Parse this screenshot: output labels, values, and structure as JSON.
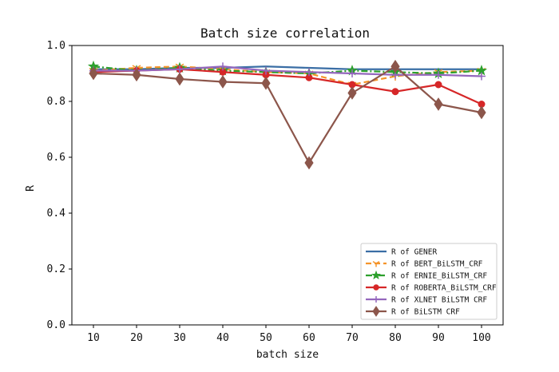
{
  "chart_data": {
    "type": "line",
    "title": "Batch size correlation",
    "xlabel": "batch size",
    "ylabel": "R",
    "categories": [
      "10",
      "20",
      "30",
      "40",
      "50",
      "60",
      "70",
      "80",
      "90",
      "100"
    ],
    "x": [
      10,
      20,
      30,
      40,
      50,
      60,
      70,
      80,
      90,
      100
    ],
    "xlim": [
      5,
      105
    ],
    "ylim": [
      0,
      1.0
    ],
    "yticks": [
      "0.0",
      "0.2",
      "0.4",
      "0.6",
      "0.8",
      "1.0"
    ],
    "grid": false,
    "legend_position": "lower-right",
    "series": [
      {
        "name": "R of GENER",
        "color": "#3a6ea5",
        "marker": "none",
        "dash": "solid",
        "values": [
          0.915,
          0.915,
          0.92,
          0.92,
          0.925,
          0.92,
          0.915,
          0.915,
          0.915,
          0.915
        ]
      },
      {
        "name": "R of BERT_BiLSTM_CRF",
        "color": "#f5942a",
        "marker": "tri-down",
        "dash": "dashed",
        "values": [
          0.91,
          0.92,
          0.925,
          0.915,
          0.905,
          0.9,
          0.86,
          0.89,
          0.905,
          0.91
        ]
      },
      {
        "name": "R of ERNIE_BiLSTM_CRF",
        "color": "#2ca02c",
        "marker": "star",
        "dash": "dashdot",
        "values": [
          0.925,
          0.91,
          0.92,
          0.91,
          0.905,
          0.9,
          0.91,
          0.905,
          0.9,
          0.91
        ]
      },
      {
        "name": "R of ROBERTA_BiLSTM_CRF",
        "color": "#d62728",
        "marker": "circle",
        "dash": "solid",
        "values": [
          0.905,
          0.91,
          0.915,
          0.905,
          0.895,
          0.885,
          0.86,
          0.835,
          0.86,
          0.79
        ]
      },
      {
        "name": "R of XLNET BiLSTM CRF",
        "color": "#9467bd",
        "marker": "plus",
        "dash": "solid",
        "values": [
          0.91,
          0.91,
          0.915,
          0.925,
          0.91,
          0.905,
          0.9,
          0.895,
          0.895,
          0.89
        ]
      },
      {
        "name": "R of BiLSTM CRF",
        "color": "#8c564b",
        "marker": "diamond",
        "dash": "solid",
        "values": [
          0.9,
          0.895,
          0.88,
          0.87,
          0.865,
          0.58,
          0.83,
          0.925,
          0.79,
          0.76
        ]
      }
    ]
  }
}
